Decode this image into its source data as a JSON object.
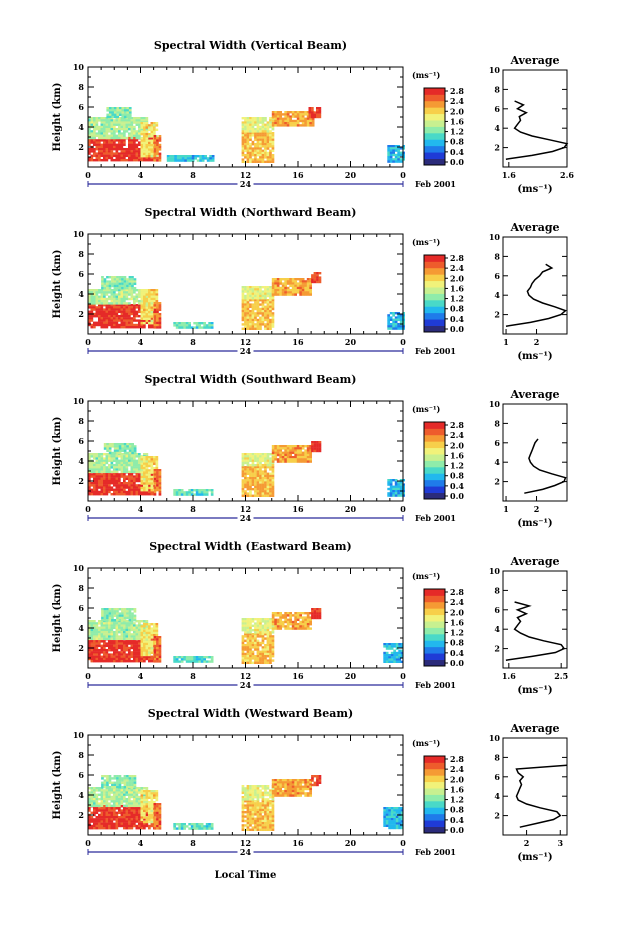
{
  "figure": {
    "xlabel": "Local Time",
    "date_label": "24",
    "month_label": "Feb 2001",
    "ylabel": "Height (km)",
    "unit_label": "(ms⁻¹)",
    "avg_title": "Average",
    "avg_xlabel": "(ms⁻¹)"
  },
  "colorbar": {
    "ticks": [
      "2.8",
      "2.4",
      "2.0",
      "1.6",
      "1.2",
      "0.8",
      "0.4",
      "0.0"
    ],
    "colors": [
      "#2b2b7a",
      "#1f3bd6",
      "#1f7bea",
      "#22b8ee",
      "#49d9c8",
      "#8fecaa",
      "#c8f090",
      "#f1f27a",
      "#f7cf4a",
      "#f59a34",
      "#ee5c2c",
      "#e52a28"
    ]
  },
  "chart_data": [
    {
      "type": "heatmap",
      "title": "Spectral Width (Vertical Beam)",
      "xlabel": "Local Time",
      "ylabel": "Height (km)",
      "xlim": [
        0,
        24
      ],
      "ylim": [
        0,
        10
      ],
      "x_ticks": [
        "0",
        "4",
        "8",
        "12",
        "16",
        "20",
        "0"
      ],
      "y_ticks": [
        "2",
        "4",
        "6",
        "8",
        "10"
      ],
      "blocks": [
        {
          "t0": 0,
          "t1": 5,
          "h0": 0.6,
          "h1": 3.0,
          "level": 2.85
        },
        {
          "t0": 0,
          "t1": 4.5,
          "h0": 3.0,
          "h1": 5.0,
          "level": 1.5
        },
        {
          "t0": 1.4,
          "t1": 3.2,
          "h0": 5.0,
          "h1": 6.0,
          "level": 1.4
        },
        {
          "t0": 4.0,
          "t1": 5.2,
          "h0": 1.2,
          "h1": 4.5,
          "level": 2.0
        },
        {
          "t0": 5.0,
          "t1": 5.5,
          "h0": 0.6,
          "h1": 3.2,
          "level": 2.6
        },
        {
          "t0": 6.0,
          "t1": 9.5,
          "h0": 0.6,
          "h1": 1.2,
          "level": 1.0
        },
        {
          "t0": 11.7,
          "t1": 14.0,
          "h0": 0.6,
          "h1": 3.5,
          "level": 2.2
        },
        {
          "t0": 11.7,
          "t1": 14.0,
          "h0": 3.5,
          "h1": 5.0,
          "level": 1.8
        },
        {
          "t0": 14.0,
          "t1": 17.2,
          "h0": 4.2,
          "h1": 5.6,
          "level": 2.3
        },
        {
          "t0": 16.8,
          "t1": 17.6,
          "h0": 5.0,
          "h1": 6.0,
          "level": 2.8
        },
        {
          "t0": 22.8,
          "t1": 24.0,
          "h0": 0.6,
          "h1": 2.2,
          "level": 0.9
        }
      ],
      "average": {
        "xticks": [
          "1.6",
          "2.6"
        ],
        "xlim": [
          1.5,
          2.6
        ],
        "height": [
          0.8,
          1.2,
          1.6,
          2.0,
          2.4,
          2.8,
          3.2,
          3.6,
          4.0,
          4.4,
          4.8,
          5.2,
          5.6,
          6.0,
          6.4,
          6.8
        ],
        "width": [
          1.55,
          2.0,
          2.35,
          2.55,
          2.6,
          2.3,
          2.0,
          1.8,
          1.7,
          1.75,
          1.8,
          1.78,
          1.9,
          1.75,
          1.85,
          1.7
        ]
      }
    },
    {
      "type": "heatmap",
      "title": "Spectral Width (Northward Beam)",
      "xlabel": "Local Time",
      "ylabel": "Height (km)",
      "xlim": [
        0,
        24
      ],
      "ylim": [
        0,
        10
      ],
      "x_ticks": [
        "0",
        "4",
        "8",
        "12",
        "16",
        "20",
        "0"
      ],
      "y_ticks": [
        "2",
        "4",
        "6",
        "8",
        "10"
      ],
      "blocks": [
        {
          "t0": 0,
          "t1": 5,
          "h0": 0.6,
          "h1": 3.0,
          "level": 2.85
        },
        {
          "t0": 0,
          "t1": 4.5,
          "h0": 3.0,
          "h1": 4.5,
          "level": 1.5
        },
        {
          "t0": 1.0,
          "t1": 3.5,
          "h0": 4.5,
          "h1": 5.8,
          "level": 1.4
        },
        {
          "t0": 4.0,
          "t1": 5.2,
          "h0": 1.2,
          "h1": 4.5,
          "level": 2.0
        },
        {
          "t0": 5.0,
          "t1": 5.5,
          "h0": 0.6,
          "h1": 3.2,
          "level": 2.6
        },
        {
          "t0": 6.5,
          "t1": 9.5,
          "h0": 0.6,
          "h1": 1.2,
          "level": 1.2
        },
        {
          "t0": 11.7,
          "t1": 14.0,
          "h0": 0.6,
          "h1": 3.5,
          "level": 2.2
        },
        {
          "t0": 11.7,
          "t1": 14.0,
          "h0": 3.5,
          "h1": 4.8,
          "level": 1.8
        },
        {
          "t0": 14.0,
          "t1": 17.0,
          "h0": 4.0,
          "h1": 5.6,
          "level": 2.3
        },
        {
          "t0": 17.0,
          "t1": 17.6,
          "h0": 5.2,
          "h1": 6.2,
          "level": 2.8
        },
        {
          "t0": 22.8,
          "t1": 24.0,
          "h0": 0.6,
          "h1": 2.2,
          "level": 0.9
        }
      ],
      "average": {
        "xticks": [
          "1",
          "2"
        ],
        "xlim": [
          0.9,
          3.0
        ],
        "height": [
          0.8,
          1.2,
          1.6,
          2.0,
          2.4,
          2.8,
          3.2,
          3.6,
          4.0,
          4.4,
          4.8,
          5.2,
          5.6,
          6.0,
          6.4,
          6.8,
          7.2
        ],
        "width": [
          1.0,
          1.8,
          2.4,
          2.8,
          2.95,
          2.6,
          2.2,
          1.9,
          1.75,
          1.7,
          1.8,
          1.85,
          1.95,
          2.1,
          2.2,
          2.5,
          2.3
        ]
      }
    },
    {
      "type": "heatmap",
      "title": "Spectral Width (Southward Beam)",
      "xlabel": "Local Time",
      "ylabel": "Height (km)",
      "xlim": [
        0,
        24
      ],
      "ylim": [
        0,
        10
      ],
      "x_ticks": [
        "0",
        "4",
        "8",
        "12",
        "16",
        "20",
        "0"
      ],
      "y_ticks": [
        "2",
        "4",
        "6",
        "8",
        "10"
      ],
      "blocks": [
        {
          "t0": 0,
          "t1": 5,
          "h0": 0.6,
          "h1": 3.0,
          "level": 2.85
        },
        {
          "t0": 0,
          "t1": 4.5,
          "h0": 3.0,
          "h1": 4.8,
          "level": 1.5
        },
        {
          "t0": 1.2,
          "t1": 3.5,
          "h0": 4.8,
          "h1": 5.8,
          "level": 1.4
        },
        {
          "t0": 4.0,
          "t1": 5.2,
          "h0": 1.2,
          "h1": 4.5,
          "level": 2.0
        },
        {
          "t0": 5.0,
          "t1": 5.5,
          "h0": 0.6,
          "h1": 3.2,
          "level": 2.6
        },
        {
          "t0": 6.5,
          "t1": 9.5,
          "h0": 0.6,
          "h1": 1.2,
          "level": 1.2
        },
        {
          "t0": 11.7,
          "t1": 14.0,
          "h0": 0.6,
          "h1": 3.5,
          "level": 2.2
        },
        {
          "t0": 11.7,
          "t1": 14.0,
          "h0": 3.5,
          "h1": 4.8,
          "level": 1.8
        },
        {
          "t0": 14.0,
          "t1": 17.0,
          "h0": 4.0,
          "h1": 5.6,
          "level": 2.3
        },
        {
          "t0": 17.0,
          "t1": 17.6,
          "h0": 5.0,
          "h1": 6.0,
          "level": 2.8
        },
        {
          "t0": 22.8,
          "t1": 24.0,
          "h0": 0.6,
          "h1": 2.2,
          "level": 0.9
        }
      ],
      "average": {
        "xticks": [
          "1",
          "2"
        ],
        "xlim": [
          0.9,
          3.0
        ],
        "height": [
          0.8,
          1.2,
          1.6,
          2.0,
          2.4,
          2.8,
          3.2,
          3.6,
          4.0,
          4.4,
          4.8,
          5.2,
          5.6,
          6.0,
          6.4
        ],
        "width": [
          1.6,
          2.2,
          2.6,
          2.9,
          2.95,
          2.5,
          2.1,
          1.9,
          1.8,
          1.75,
          1.8,
          1.85,
          1.9,
          1.95,
          2.05
        ]
      }
    },
    {
      "type": "heatmap",
      "title": "Spectral Width (Eastward Beam)",
      "xlabel": "Local Time",
      "ylabel": "Height (km)",
      "xlim": [
        0,
        24
      ],
      "ylim": [
        0,
        10
      ],
      "x_ticks": [
        "0",
        "4",
        "8",
        "12",
        "16",
        "20",
        "0"
      ],
      "y_ticks": [
        "2",
        "4",
        "6",
        "8",
        "10"
      ],
      "blocks": [
        {
          "t0": 0,
          "t1": 5,
          "h0": 0.6,
          "h1": 3.0,
          "level": 2.85
        },
        {
          "t0": 0,
          "t1": 4.5,
          "h0": 3.0,
          "h1": 4.8,
          "level": 1.5
        },
        {
          "t0": 1.0,
          "t1": 3.5,
          "h0": 4.8,
          "h1": 6.0,
          "level": 1.4
        },
        {
          "t0": 4.0,
          "t1": 5.2,
          "h0": 1.2,
          "h1": 4.5,
          "level": 2.0
        },
        {
          "t0": 5.0,
          "t1": 5.5,
          "h0": 0.6,
          "h1": 3.2,
          "level": 2.6
        },
        {
          "t0": 6.5,
          "t1": 9.5,
          "h0": 0.6,
          "h1": 1.2,
          "level": 1.2
        },
        {
          "t0": 11.7,
          "t1": 14.0,
          "h0": 0.6,
          "h1": 3.5,
          "level": 2.2
        },
        {
          "t0": 11.7,
          "t1": 14.0,
          "h0": 3.5,
          "h1": 5.0,
          "level": 1.8
        },
        {
          "t0": 14.0,
          "t1": 17.0,
          "h0": 4.0,
          "h1": 5.6,
          "level": 2.3
        },
        {
          "t0": 17.0,
          "t1": 17.6,
          "h0": 5.0,
          "h1": 6.0,
          "level": 2.8
        },
        {
          "t0": 22.5,
          "t1": 24.0,
          "h0": 0.6,
          "h1": 2.5,
          "level": 0.9
        }
      ],
      "average": {
        "xticks": [
          "1.6",
          "2.5"
        ],
        "xlim": [
          1.5,
          2.6
        ],
        "height": [
          0.8,
          1.2,
          1.6,
          2.0,
          2.4,
          2.8,
          3.2,
          3.6,
          4.0,
          4.4,
          4.8,
          5.2,
          5.6,
          6.0,
          6.4,
          6.8
        ],
        "width": [
          1.55,
          2.0,
          2.4,
          2.55,
          2.5,
          2.2,
          1.95,
          1.8,
          1.7,
          1.75,
          1.8,
          1.75,
          1.9,
          1.75,
          1.95,
          1.7
        ]
      }
    },
    {
      "type": "heatmap",
      "title": "Spectral Width (Westward Beam)",
      "xlabel": "Local Time",
      "ylabel": "Height (km)",
      "xlim": [
        0,
        24
      ],
      "ylim": [
        0,
        10
      ],
      "x_ticks": [
        "0",
        "4",
        "8",
        "12",
        "16",
        "20",
        "0"
      ],
      "y_ticks": [
        "2",
        "4",
        "6",
        "8",
        "10"
      ],
      "blocks": [
        {
          "t0": 0,
          "t1": 5,
          "h0": 0.6,
          "h1": 3.0,
          "level": 2.85
        },
        {
          "t0": 0,
          "t1": 4.5,
          "h0": 3.0,
          "h1": 4.8,
          "level": 1.5
        },
        {
          "t0": 1.0,
          "t1": 3.5,
          "h0": 4.8,
          "h1": 6.0,
          "level": 1.4
        },
        {
          "t0": 4.0,
          "t1": 5.2,
          "h0": 1.2,
          "h1": 4.5,
          "level": 2.0
        },
        {
          "t0": 5.0,
          "t1": 5.5,
          "h0": 0.6,
          "h1": 3.2,
          "level": 2.6
        },
        {
          "t0": 6.5,
          "t1": 9.5,
          "h0": 0.6,
          "h1": 1.2,
          "level": 1.2
        },
        {
          "t0": 11.7,
          "t1": 14.0,
          "h0": 0.6,
          "h1": 3.5,
          "level": 2.2
        },
        {
          "t0": 11.7,
          "t1": 14.0,
          "h0": 3.5,
          "h1": 5.0,
          "level": 1.8
        },
        {
          "t0": 14.0,
          "t1": 17.0,
          "h0": 4.0,
          "h1": 5.6,
          "level": 2.3
        },
        {
          "t0": 17.0,
          "t1": 17.6,
          "h0": 5.0,
          "h1": 6.0,
          "level": 2.8
        },
        {
          "t0": 22.5,
          "t1": 24.0,
          "h0": 0.6,
          "h1": 2.8,
          "level": 0.9
        }
      ],
      "average": {
        "xticks": [
          "2",
          "3"
        ],
        "xlim": [
          1.3,
          3.2
        ],
        "height": [
          0.8,
          1.2,
          1.6,
          2.0,
          2.4,
          2.8,
          3.2,
          3.6,
          4.0,
          4.4,
          4.8,
          5.2,
          5.6,
          6.0,
          6.4,
          6.8,
          7.2
        ],
        "width": [
          1.8,
          2.3,
          2.8,
          3.0,
          2.9,
          2.4,
          2.0,
          1.75,
          1.7,
          1.75,
          1.8,
          1.85,
          1.8,
          1.9,
          1.75,
          1.7,
          3.2
        ]
      }
    }
  ]
}
